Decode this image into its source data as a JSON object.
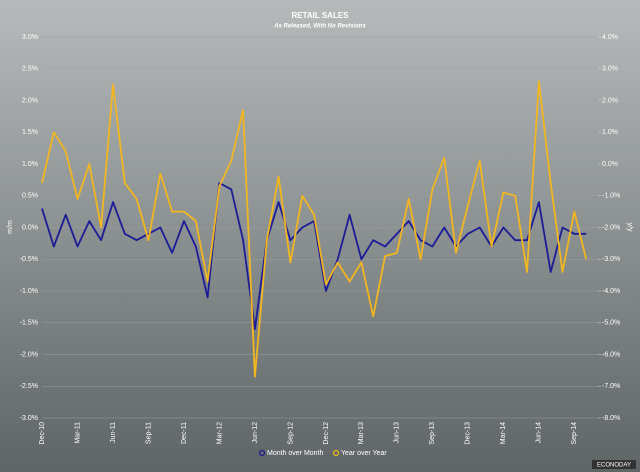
{
  "chart_data": {
    "type": "line",
    "title": "RETAIL SALES",
    "subtitle": "As Released, With No Revisions",
    "y_label": "m/m",
    "y2_label": "y/y",
    "categories": [
      "Dec-10",
      null,
      null,
      "Mar-11",
      null,
      null,
      "Jun-11",
      null,
      null,
      "Sep-11",
      null,
      null,
      "Dec-11",
      null,
      null,
      "Mar-12",
      null,
      null,
      "Jun-12",
      null,
      null,
      "Sep-12",
      null,
      null,
      "Dec-12",
      null,
      null,
      "Mar-13",
      null,
      null,
      "Jun-13",
      null,
      null,
      "Sep-13",
      null,
      null,
      "Dec-13",
      null,
      null,
      "Mar-14",
      null,
      null,
      "Jun-14",
      null,
      null,
      "Sep-14",
      null
    ],
    "series": [
      {
        "name": "Month over Month",
        "color": "#1c1c96",
        "axis": "y",
        "values": [
          0.3,
          -0.3,
          0.2,
          -0.3,
          0.1,
          -0.2,
          0.4,
          -0.1,
          -0.2,
          -0.1,
          0.0,
          -0.4,
          0.1,
          -0.3,
          -1.1,
          0.7,
          0.6,
          -0.2,
          -1.6,
          -0.2,
          0.4,
          -0.2,
          0.0,
          0.1,
          -1.0,
          -0.5,
          0.2,
          -0.5,
          -0.2,
          -0.3,
          -0.1,
          0.1,
          -0.2,
          -0.3,
          0.0,
          -0.3,
          -0.1,
          0.0,
          -0.3,
          0.0,
          -0.2,
          -0.2,
          0.4,
          -0.7,
          0.0,
          -0.1,
          -0.1
        ]
      },
      {
        "name": "Year over Year",
        "color": "#f2b621",
        "axis": "y2",
        "values": [
          -0.6,
          1.0,
          0.4,
          -1.1,
          0.0,
          -2.0,
          2.5,
          -0.6,
          -1.1,
          -2.4,
          -0.3,
          -1.5,
          -1.5,
          -1.8,
          -3.7,
          -0.7,
          0.1,
          1.7,
          -6.7,
          -2.4,
          -0.4,
          -3.1,
          -1.0,
          -1.6,
          -3.8,
          -3.1,
          -3.7,
          -3.1,
          -4.8,
          -2.9,
          -2.8,
          -1.1,
          -3.0,
          -0.8,
          0.2,
          -2.8,
          -1.3,
          0.1,
          -2.6,
          -0.9,
          -1.0,
          -3.4,
          2.6,
          -0.6,
          -3.4,
          -1.5,
          -3.0
        ]
      }
    ],
    "ylim": [
      -3.0,
      3.0
    ],
    "yticks": [
      {
        "value": -3.0,
        "label": "-3.0%"
      },
      {
        "value": -2.5,
        "label": "-2.5%"
      },
      {
        "value": -2.0,
        "label": "-2.0%"
      },
      {
        "value": -1.5,
        "label": "-1.5%"
      },
      {
        "value": -1.0,
        "label": "-1.0%"
      },
      {
        "value": -0.5,
        "label": "-0.5%"
      },
      {
        "value": 0.0,
        "label": "0.0%"
      },
      {
        "value": 0.5,
        "label": "0.5%"
      },
      {
        "value": 1.0,
        "label": "1.0%"
      },
      {
        "value": 1.5,
        "label": "1.5%"
      },
      {
        "value": 2.0,
        "label": "2.0%"
      },
      {
        "value": 2.5,
        "label": "2.5%"
      },
      {
        "value": 3.0,
        "label": "3.0%"
      }
    ],
    "y2lim": [
      -8.0,
      4.0
    ],
    "y2ticks": [
      {
        "value": -8.0,
        "label": "-8.0%"
      },
      {
        "value": -7.0,
        "label": "-7.0%"
      },
      {
        "value": -6.0,
        "label": "-6.0%"
      },
      {
        "value": -5.0,
        "label": "-5.0%"
      },
      {
        "value": -4.0,
        "label": "-4.0%"
      },
      {
        "value": -3.0,
        "label": "-3.0%"
      },
      {
        "value": -2.0,
        "label": "-2.0%"
      },
      {
        "value": -1.0,
        "label": "-1.0%"
      },
      {
        "value": 0.0,
        "label": "0.0%"
      },
      {
        "value": 1.0,
        "label": "1.0%"
      },
      {
        "value": 2.0,
        "label": "2.0%"
      },
      {
        "value": 3.0,
        "label": "3.0%"
      },
      {
        "value": 4.0,
        "label": "4.0%"
      }
    ],
    "grid": true,
    "legend": "bottom",
    "source": "ECONODAY"
  }
}
